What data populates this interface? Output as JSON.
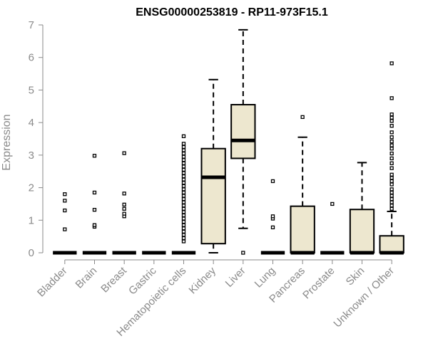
{
  "chart_data": {
    "type": "box",
    "title": "ENSG00000253819 - RP11-973F15.1",
    "xlabel": "",
    "ylabel": "Expression",
    "ylim": [
      0,
      7
    ],
    "yticks": [
      0,
      1,
      2,
      3,
      4,
      5,
      6,
      7
    ],
    "categories": [
      "Bladder",
      "Brain",
      "Breast",
      "Gastric",
      "Hematopoietic cells",
      "Kidney",
      "Liver",
      "Lung",
      "Pancreas",
      "Prostate",
      "Skin",
      "Unknown / Other"
    ],
    "box_fill": "#ede7cf",
    "boxes": [
      {
        "category": "Bladder",
        "q1": 0,
        "median": 0,
        "q3": 0,
        "whisker_low": 0,
        "whisker_high": 0,
        "outliers": [
          0.72,
          1.3,
          1.6,
          1.8
        ]
      },
      {
        "category": "Brain",
        "q1": 0,
        "median": 0,
        "q3": 0,
        "whisker_low": 0,
        "whisker_high": 0,
        "outliers": [
          0.8,
          0.85,
          1.32,
          1.85,
          2.98
        ]
      },
      {
        "category": "Breast",
        "q1": 0,
        "median": 0,
        "q3": 0,
        "whisker_low": 0,
        "whisker_high": 0,
        "outliers": [
          1.12,
          1.2,
          1.35,
          1.48,
          1.82,
          3.06
        ]
      },
      {
        "category": "Gastric",
        "q1": 0,
        "median": 0,
        "q3": 0,
        "whisker_low": 0,
        "whisker_high": 0,
        "outliers": []
      },
      {
        "category": "Hematopoietic cells",
        "q1": 0,
        "median": 0,
        "q3": 0,
        "whisker_low": 0,
        "whisker_high": 0,
        "outliers": [
          0.35,
          0.45,
          0.55,
          0.65,
          0.75,
          0.85,
          0.95,
          1.05,
          1.15,
          1.25,
          1.35,
          1.45,
          1.55,
          1.65,
          1.75,
          1.85,
          1.95,
          2.05,
          2.15,
          2.25,
          2.35,
          2.45,
          2.55,
          2.65,
          2.75,
          2.85,
          2.95,
          3.05,
          3.15,
          3.25,
          3.35,
          3.58
        ]
      },
      {
        "category": "Kidney",
        "q1": 0.28,
        "median": 2.32,
        "q3": 3.2,
        "whisker_low": 0,
        "whisker_high": 5.32,
        "outliers": []
      },
      {
        "category": "Liver",
        "q1": 2.9,
        "median": 3.45,
        "q3": 4.55,
        "whisker_low": 0.75,
        "whisker_high": 6.85,
        "outliers": [
          0
        ]
      },
      {
        "category": "Lung",
        "q1": 0,
        "median": 0,
        "q3": 0,
        "whisker_low": 0,
        "whisker_high": 0,
        "outliers": [
          0.78,
          1.05,
          1.12,
          2.2
        ]
      },
      {
        "category": "Pancreas",
        "q1": 0,
        "median": 0,
        "q3": 1.43,
        "whisker_low": 0,
        "whisker_high": 3.55,
        "outliers": [
          4.17
        ]
      },
      {
        "category": "Prostate",
        "q1": 0,
        "median": 0,
        "q3": 0,
        "whisker_low": 0,
        "whisker_high": 0,
        "outliers": [
          1.5
        ]
      },
      {
        "category": "Skin",
        "q1": 0,
        "median": 0,
        "q3": 1.33,
        "whisker_low": 0,
        "whisker_high": 2.77,
        "outliers": []
      },
      {
        "category": "Unknown / Other",
        "q1": 0,
        "median": 0,
        "q3": 0.52,
        "whisker_low": 0,
        "whisker_high": 1.27,
        "outliers": [
          1.35,
          1.45,
          1.55,
          1.65,
          1.75,
          1.85,
          1.95,
          2.1,
          2.2,
          2.3,
          2.4,
          2.6,
          2.75,
          2.9,
          3.05,
          3.2,
          3.3,
          3.42,
          3.55,
          3.7,
          3.9,
          4.05,
          4.15,
          4.25,
          4.75,
          5.82
        ]
      }
    ],
    "grid": false,
    "legend": "none"
  }
}
